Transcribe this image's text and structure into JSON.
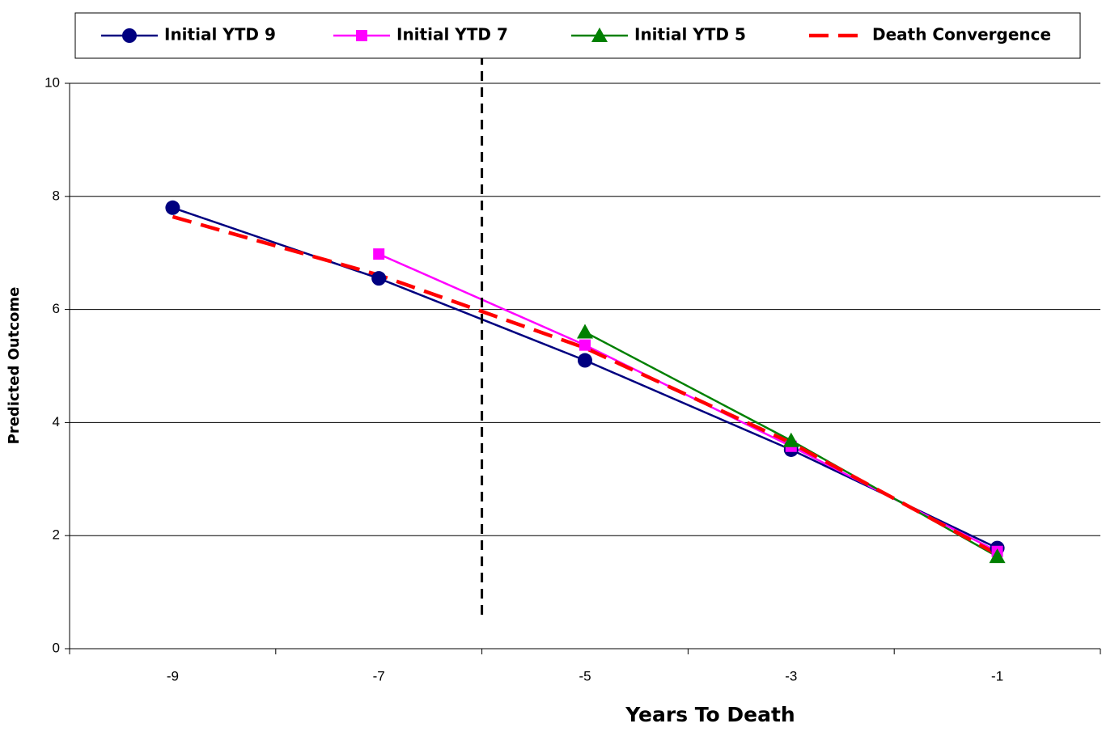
{
  "chart_data": {
    "type": "line",
    "x_label": "Years To Death",
    "y_label": "Predicted Outcome",
    "xlim": [
      -10,
      0
    ],
    "xticks": [
      -9,
      -7,
      -5,
      -3,
      -1
    ],
    "x_minor_ticks": [
      -10,
      -8,
      -6,
      -4,
      -2,
      0
    ],
    "ylim": [
      0,
      10
    ],
    "yticks": [
      0,
      2,
      4,
      6,
      8,
      10
    ],
    "grid": true,
    "legend": "top",
    "series": [
      {
        "name": "Initial YTD 9",
        "color": "#000080",
        "marker": "circle",
        "dash": false,
        "x": [
          -9,
          -7,
          -5,
          -3,
          -1
        ],
        "values": [
          7.8,
          6.55,
          5.1,
          3.52,
          1.78
        ]
      },
      {
        "name": "Initial YTD 7",
        "color": "#ff00ff",
        "marker": "square",
        "dash": false,
        "x": [
          -7,
          -5,
          -3,
          -1
        ],
        "values": [
          6.98,
          5.37,
          3.58,
          1.72
        ]
      },
      {
        "name": "Initial YTD 5",
        "color": "#008000",
        "marker": "triangle",
        "dash": false,
        "x": [
          -5,
          -3,
          -1
        ],
        "values": [
          5.6,
          3.68,
          1.63
        ]
      },
      {
        "name": "Death Convergence",
        "color": "#ff0000",
        "marker": "none",
        "dash": true,
        "x": [
          -9,
          -7,
          -5,
          -3,
          -1
        ],
        "values": [
          7.64,
          6.61,
          5.32,
          3.64,
          1.67
        ]
      }
    ],
    "vertical_line": {
      "x": -6,
      "y": [
        0.6,
        10.45
      ],
      "color": "#000000"
    }
  }
}
